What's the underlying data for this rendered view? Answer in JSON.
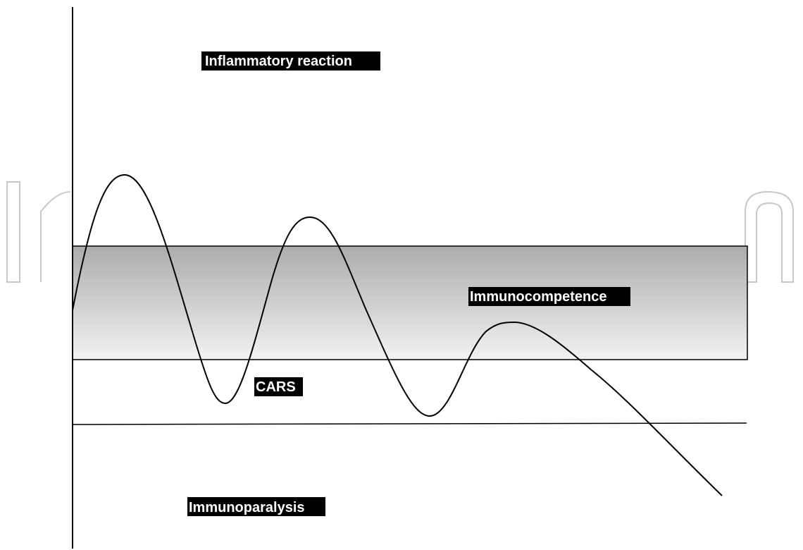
{
  "labels": {
    "inflammatory_reaction": "Inflammatory reaction",
    "immunocompetence": "Immunocompetence",
    "cars": "CARS",
    "immunoparalysis": "Immunoparalysis"
  },
  "colors": {
    "axis": "#000000",
    "curve": "#000000",
    "band_top": "#aaacae",
    "band_bottom": "#f2f2f2",
    "label_background": "#000000",
    "label_text": "#ffffff",
    "watermark": "#c8c8c8"
  }
}
